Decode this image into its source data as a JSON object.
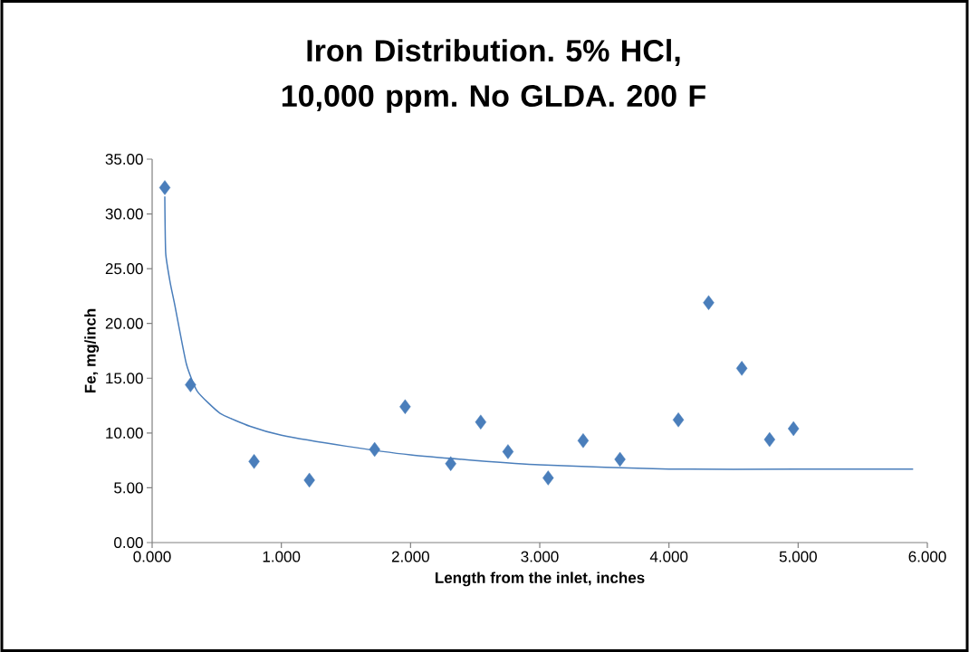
{
  "chart_data": {
    "type": "scatter",
    "title": "Iron Distribution. 5% HCl, 10,000 ppm. No GLDA. 200 F",
    "xlabel": "Length from the inlet, inches",
    "ylabel": "Fe, mg/inch",
    "grid": false,
    "xlim": [
      0,
      6
    ],
    "ylim": [
      0,
      35
    ],
    "xticks": [
      {
        "value": 0,
        "label": "0.000"
      },
      {
        "value": 1,
        "label": "1.000"
      },
      {
        "value": 2,
        "label": "2.000"
      },
      {
        "value": 3,
        "label": "3.000"
      },
      {
        "value": 4,
        "label": "4.000"
      },
      {
        "value": 5,
        "label": "5.000"
      },
      {
        "value": 6,
        "label": "6.000"
      }
    ],
    "yticks": [
      {
        "value": 0,
        "label": "0.00"
      },
      {
        "value": 5,
        "label": "5.00"
      },
      {
        "value": 10,
        "label": "10.00"
      },
      {
        "value": 15,
        "label": "15.00"
      },
      {
        "value": 20,
        "label": "20.00"
      },
      {
        "value": 25,
        "label": "25.00"
      },
      {
        "value": 30,
        "label": "30.00"
      },
      {
        "value": 35,
        "label": "35.00"
      }
    ],
    "series": [
      {
        "marker": "diamond",
        "color": "#4a7ebb",
        "x": [
          0.098,
          0.297,
          0.789,
          1.217,
          1.722,
          1.958,
          2.311,
          2.543,
          2.754,
          3.065,
          3.336,
          3.621,
          4.073,
          4.307,
          4.564,
          4.779,
          4.964
        ],
        "values": [
          32.4,
          14.4,
          7.4,
          5.7,
          8.5,
          12.4,
          7.2,
          11.0,
          8.3,
          5.9,
          9.3,
          7.6,
          11.2,
          21.9,
          15.9,
          9.4,
          10.4
        ]
      },
      {
        "type": "line",
        "marker": "none",
        "color": "#4a7ebb",
        "x": [
          0.098,
          0.105,
          0.14,
          0.175,
          0.265,
          0.35,
          0.526,
          0.76,
          1.0,
          1.5,
          2.0,
          2.5,
          3.0,
          4.0,
          5.0,
          5.89
        ],
        "values": [
          31.6,
          26.4,
          23.7,
          21.7,
          16.3,
          13.8,
          11.8,
          10.6,
          9.8,
          8.8,
          8.0,
          7.5,
          7.1,
          6.7,
          6.7,
          6.7
        ]
      }
    ]
  }
}
